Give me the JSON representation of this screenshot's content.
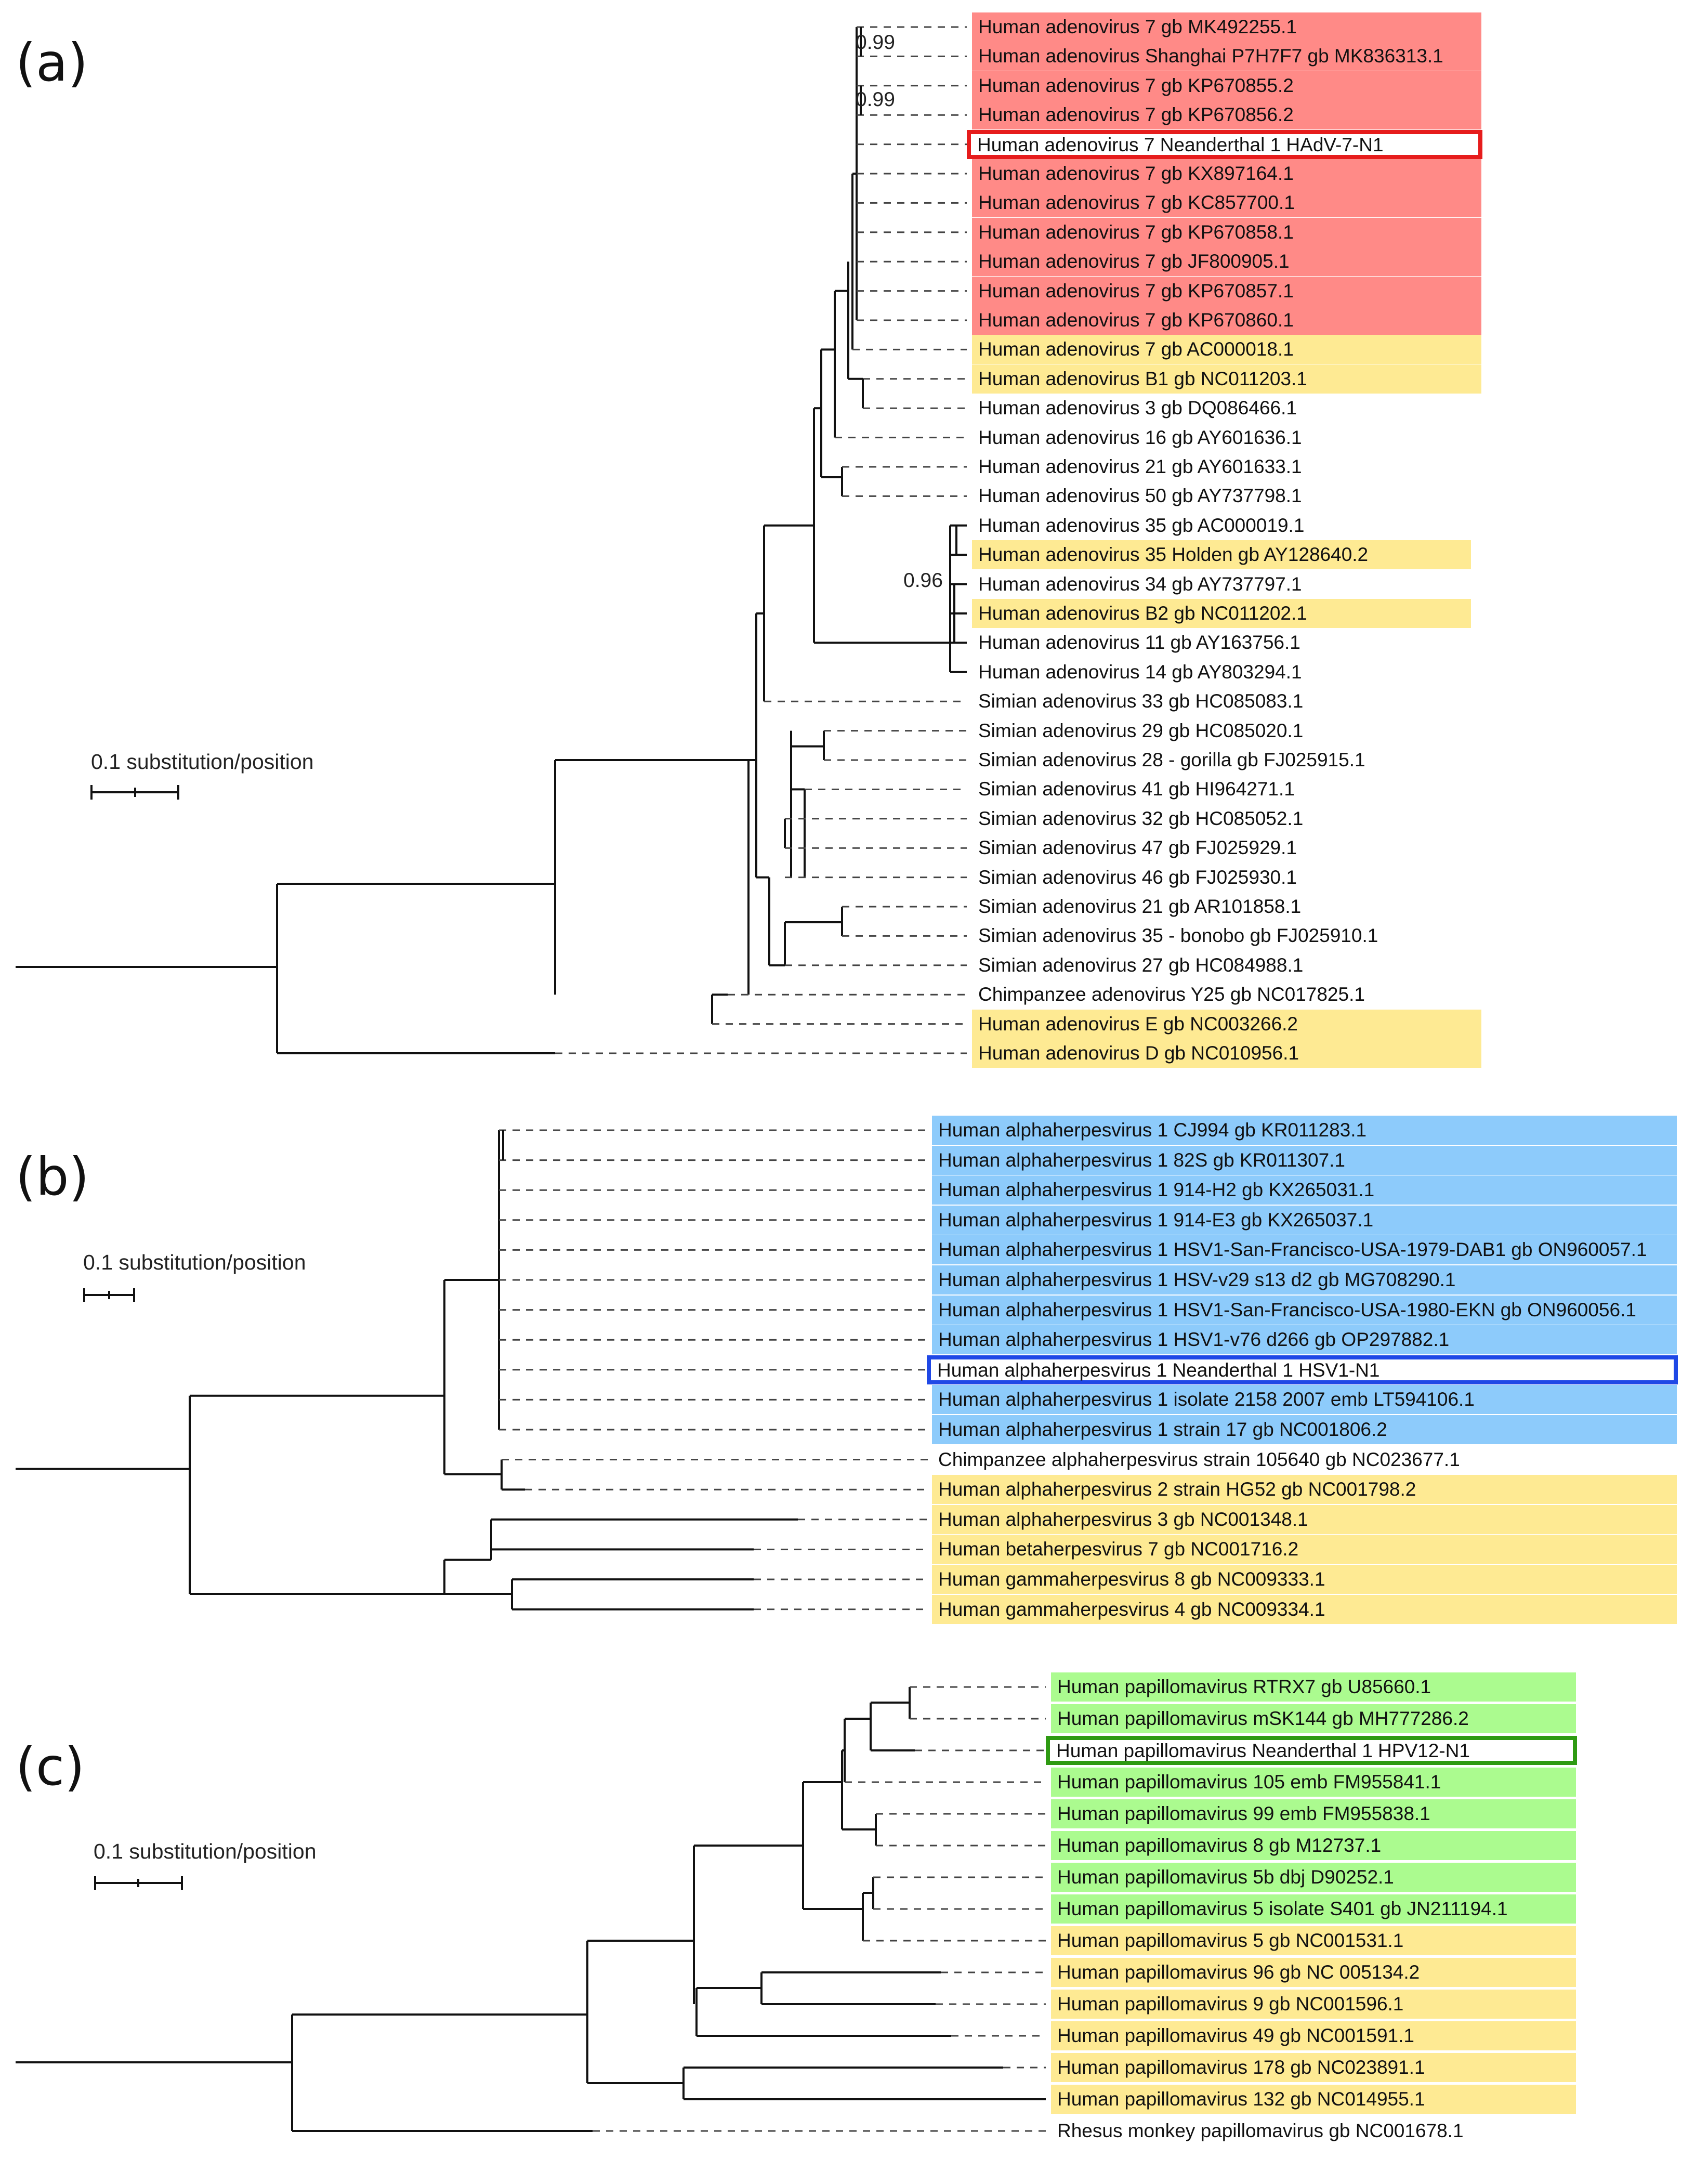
{
  "panels": {
    "a": {
      "label": "(a)",
      "scale_label": "0.1 substitution/position",
      "support_values": [
        "0.99",
        "0.99",
        "0.96"
      ],
      "taxa": [
        {
          "name": "Human adenovirus 7 gb MK492255.1",
          "group": "red"
        },
        {
          "name": "Human adenovirus Shanghai P7H7F7 gb MK836313.1",
          "group": "red"
        },
        {
          "name": "Human adenovirus 7 gb KP670855.2",
          "group": "red"
        },
        {
          "name": "Human adenovirus 7 gb KP670856.2",
          "group": "red"
        },
        {
          "name": "Human adenovirus 7 Neanderthal 1 HAdV-7-N1",
          "group": "highlight"
        },
        {
          "name": "Human adenovirus 7 gb KX897164.1",
          "group": "red"
        },
        {
          "name": "Human adenovirus 7 gb KC857700.1",
          "group": "red"
        },
        {
          "name": "Human adenovirus 7 gb KP670858.1",
          "group": "red"
        },
        {
          "name": "Human adenovirus 7 gb JF800905.1",
          "group": "red"
        },
        {
          "name": "Human adenovirus 7 gb KP670857.1",
          "group": "red"
        },
        {
          "name": "Human adenovirus 7 gb KP670860.1",
          "group": "red"
        },
        {
          "name": "Human adenovirus 7 gb AC000018.1",
          "group": "yellow"
        },
        {
          "name": "Human adenovirus B1 gb NC011203.1",
          "group": "yellow"
        },
        {
          "name": "Human adenovirus 3 gb DQ086466.1",
          "group": "plain"
        },
        {
          "name": "Human adenovirus 16 gb AY601636.1",
          "group": "plain"
        },
        {
          "name": "Human adenovirus 21 gb AY601633.1",
          "group": "plain"
        },
        {
          "name": "Human adenovirus 50 gb AY737798.1",
          "group": "plain"
        },
        {
          "name": "Human adenovirus 35 gb AC000019.1",
          "group": "plain"
        },
        {
          "name": "Human adenovirus 35 Holden gb AY128640.2",
          "group": "yellow"
        },
        {
          "name": "Human adenovirus 34 gb AY737797.1",
          "group": "plain"
        },
        {
          "name": "Human adenovirus B2 gb NC011202.1",
          "group": "yellow"
        },
        {
          "name": "Human adenovirus 11 gb AY163756.1",
          "group": "plain"
        },
        {
          "name": "Human adenovirus 14 gb AY803294.1",
          "group": "plain"
        },
        {
          "name": "Simian adenovirus 33 gb HC085083.1",
          "group": "plain"
        },
        {
          "name": "Simian adenovirus 29 gb HC085020.1",
          "group": "plain"
        },
        {
          "name": "Simian adenovirus 28 - gorilla gb FJ025915.1",
          "group": "plain"
        },
        {
          "name": "Simian adenovirus 41 gb HI964271.1",
          "group": "plain"
        },
        {
          "name": "Simian adenovirus 32 gb HC085052.1",
          "group": "plain"
        },
        {
          "name": "Simian adenovirus 47 gb FJ025929.1",
          "group": "plain"
        },
        {
          "name": "Simian adenovirus 46 gb FJ025930.1",
          "group": "plain"
        },
        {
          "name": "Simian adenovirus 21 gb AR101858.1",
          "group": "plain"
        },
        {
          "name": "Simian adenovirus 35 - bonobo gb FJ025910.1",
          "group": "plain"
        },
        {
          "name": "Simian adenovirus 27 gb HC084988.1",
          "group": "plain"
        },
        {
          "name": "Chimpanzee adenovirus Y25 gb NC017825.1",
          "group": "plain"
        },
        {
          "name": "Human adenovirus E gb NC003266.2",
          "group": "yellow"
        },
        {
          "name": "Human adenovirus D gb NC010956.1",
          "group": "yellow"
        }
      ]
    },
    "b": {
      "label": "(b)",
      "scale_label": "0.1 substitution/position",
      "taxa": [
        {
          "name": "Human alphaherpesvirus 1 CJ994 gb KR011283.1",
          "group": "blue"
        },
        {
          "name": "Human alphaherpesvirus 1 82S gb KR011307.1",
          "group": "blue"
        },
        {
          "name": "Human alphaherpesvirus 1 914-H2 gb KX265031.1",
          "group": "blue"
        },
        {
          "name": "Human alphaherpesvirus 1 914-E3 gb KX265037.1",
          "group": "blue"
        },
        {
          "name": "Human alphaherpesvirus 1 HSV1-San-Francisco-USA-1979-DAB1 gb ON960057.1",
          "group": "blue"
        },
        {
          "name": "Human alphaherpesvirus 1 HSV-v29 s13 d2 gb MG708290.1",
          "group": "blue"
        },
        {
          "name": "Human alphaherpesvirus 1 HSV1-San-Francisco-USA-1980-EKN gb ON960056.1",
          "group": "blue"
        },
        {
          "name": "Human alphaherpesvirus 1 HSV1-v76 d266 gb OP297882.1",
          "group": "blue"
        },
        {
          "name": "Human alphaherpesvirus 1 Neanderthal 1 HSV1-N1",
          "group": "highlight"
        },
        {
          "name": "Human alphaherpesvirus 1 isolate 2158 2007 emb LT594106.1",
          "group": "blue"
        },
        {
          "name": "Human alphaherpesvirus 1 strain 17 gb NC001806.2",
          "group": "blue"
        },
        {
          "name": "Chimpanzee alphaherpesvirus strain 105640 gb NC023677.1",
          "group": "plain"
        },
        {
          "name": "Human alphaherpesvirus 2 strain HG52 gb NC001798.2",
          "group": "yellow"
        },
        {
          "name": "Human alphaherpesvirus 3 gb NC001348.1",
          "group": "yellow"
        },
        {
          "name": "Human betaherpesvirus 7 gb NC001716.2",
          "group": "yellow"
        },
        {
          "name": "Human gammaherpesvirus 8 gb NC009333.1",
          "group": "yellow"
        },
        {
          "name": "Human gammaherpesvirus 4 gb NC009334.1",
          "group": "yellow"
        }
      ]
    },
    "c": {
      "label": "(c)",
      "scale_label": "0.1 substitution/position",
      "taxa": [
        {
          "name": "Human papillomavirus RTRX7 gb U85660.1",
          "group": "green"
        },
        {
          "name": "Human papillomavirus mSK144 gb MH777286.2",
          "group": "green"
        },
        {
          "name": "Human papillomavirus Neanderthal 1 HPV12-N1",
          "group": "highlight"
        },
        {
          "name": "Human papillomavirus 105 emb FM955841.1",
          "group": "green"
        },
        {
          "name": "Human papillomavirus 99 emb FM955838.1",
          "group": "green"
        },
        {
          "name": "Human papillomavirus 8 gb M12737.1",
          "group": "green"
        },
        {
          "name": "Human papillomavirus 5b dbj D90252.1",
          "group": "green"
        },
        {
          "name": "Human papillomavirus 5 isolate S401 gb JN211194.1",
          "group": "green"
        },
        {
          "name": "Human papillomavirus 5 gb NC001531.1",
          "group": "yellow"
        },
        {
          "name": "Human papillomavirus 96 gb NC 005134.2",
          "group": "yellow"
        },
        {
          "name": "Human papillomavirus 9 gb NC001596.1",
          "group": "yellow"
        },
        {
          "name": "Human papillomavirus 49 gb NC001591.1",
          "group": "yellow"
        },
        {
          "name": "Human papillomavirus 178 gb NC023891.1",
          "group": "yellow"
        },
        {
          "name": "Human papillomavirus 132 gb NC014955.1",
          "group": "yellow"
        },
        {
          "name": "Rhesus monkey papillomavirus gb NC001678.1",
          "group": "plain"
        }
      ]
    }
  },
  "colors": {
    "red_clade": "#ff8a87",
    "yellow_reference": "#feea93",
    "blue_clade": "#8dcbfb",
    "green_clade": "#abfb8f",
    "neanderthal_a_border": "#e61c1c",
    "neanderthal_b_border": "#1f48e6",
    "neanderthal_c_border": "#2e9a12"
  }
}
